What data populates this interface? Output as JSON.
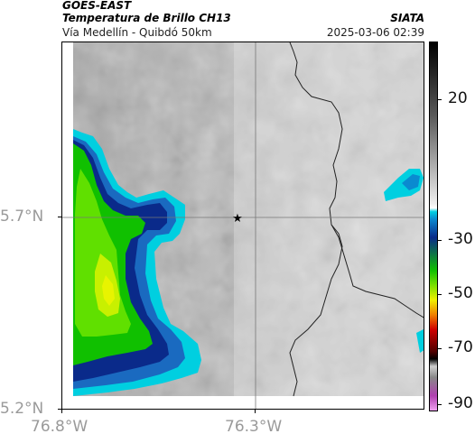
{
  "header": {
    "satellite": "GOES-EAST",
    "product": "Temperatura de Brillo CH13",
    "region": "Vía Medellín - Quibdó 50km",
    "source": "SIATA",
    "datetime": "2025-03-06 02:39"
  },
  "map": {
    "x_axis": {
      "ticks": [
        "76.8°W",
        "76.3°W"
      ]
    },
    "y_axis": {
      "ticks": [
        "5.7°N",
        "5.2°N"
      ]
    },
    "marker_icon": "star-icon"
  },
  "colorbar": {
    "ticks": [
      "20",
      "-30",
      "-50",
      "-70",
      "-90"
    ],
    "colors": {
      "warm_top": "#000000",
      "gray_light": "#f0f0f0",
      "cyan": "#00cfe0",
      "blue": "#0a2a8a",
      "green": "#10c000",
      "yellow": "#f0f000",
      "red": "#d00000",
      "magenta": "#b040b0"
    }
  }
}
